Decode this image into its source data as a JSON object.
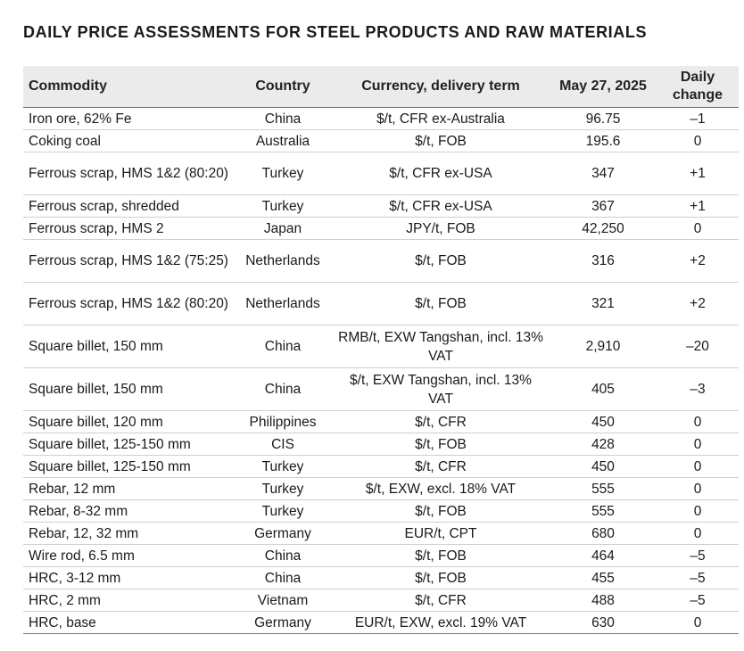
{
  "title": "DAILY PRICE ASSESSMENTS FOR STEEL PRODUCTS AND RAW MATERIALS",
  "headers": {
    "commodity": "Commodity",
    "country": "Country",
    "term": "Currency, delivery term",
    "date": "May 27, 2025",
    "change_line1": "Daily",
    "change_line2": "change"
  },
  "rows": [
    {
      "commodity": "Iron ore, 62% Fe",
      "country": "China",
      "term": "$/t, CFR ex-Australia",
      "price": "96.75",
      "change": "–1"
    },
    {
      "commodity": "Coking coal",
      "country": "Australia",
      "term": "$/t, FOB",
      "price": "195.6",
      "change": "0"
    },
    {
      "commodity": "Ferrous scrap, HMS 1&2 (80:20)",
      "country": "Turkey",
      "term": "$/t, CFR ex-USA",
      "price": "347",
      "change": "+1"
    },
    {
      "commodity": "Ferrous scrap, shredded",
      "country": "Turkey",
      "term": "$/t, CFR ex-USA",
      "price": "367",
      "change": "+1"
    },
    {
      "commodity": "Ferrous scrap, HMS 2",
      "country": "Japan",
      "term": "JPY/t, FOB",
      "price": "42,250",
      "change": "0"
    },
    {
      "commodity": "Ferrous scrap, HMS 1&2 (75:25)",
      "country": "Netherlands",
      "term": "$/t, FOB",
      "price": "316",
      "change": "+2"
    },
    {
      "commodity": "Ferrous scrap, HMS 1&2 (80:20)",
      "country": "Netherlands",
      "term": "$/t, FOB",
      "price": "321",
      "change": "+2"
    },
    {
      "commodity": "Square billet, 150 mm",
      "country": "China",
      "term": "RMB/t, EXW Tangshan, incl. 13% VAT",
      "price": "2,910",
      "change": "–20"
    },
    {
      "commodity": "Square billet, 150 mm",
      "country": "China",
      "term": "$/t, EXW Tangshan, incl. 13% VAT",
      "price": "405",
      "change": "–3"
    },
    {
      "commodity": "Square billet, 120 mm",
      "country": "Philippines",
      "term": "$/t, CFR",
      "price": "450",
      "change": "0"
    },
    {
      "commodity": "Square billet, 125-150 mm",
      "country": "CIS",
      "term": "$/t, FOB",
      "price": "428",
      "change": "0"
    },
    {
      "commodity": "Square billet, 125-150 mm",
      "country": "Turkey",
      "term": "$/t, CFR",
      "price": "450",
      "change": "0"
    },
    {
      "commodity": "Rebar, 12 mm",
      "country": "Turkey",
      "term": "$/t, EXW, excl. 18% VAT",
      "price": "555",
      "change": "0"
    },
    {
      "commodity": "Rebar, 8-32 mm",
      "country": "Turkey",
      "term": "$/t, FOB",
      "price": "555",
      "change": "0"
    },
    {
      "commodity": "Rebar, 12, 32 mm",
      "country": "Germany",
      "term": "EUR/t, CPT",
      "price": "680",
      "change": "0"
    },
    {
      "commodity": "Wire rod, 6.5 mm",
      "country": "China",
      "term": "$/t, FOB",
      "price": "464",
      "change": "–5"
    },
    {
      "commodity": "HRC, 3-12 mm",
      "country": "China",
      "term": "$/t, FOB",
      "price": "455",
      "change": "–5"
    },
    {
      "commodity": "HRC, 2 mm",
      "country": "Vietnam",
      "term": "$/t, CFR",
      "price": "488",
      "change": "–5"
    },
    {
      "commodity": "HRC, base",
      "country": "Germany",
      "term": "EUR/t, EXW, excl. 19% VAT",
      "price": "630",
      "change": "0"
    }
  ]
}
